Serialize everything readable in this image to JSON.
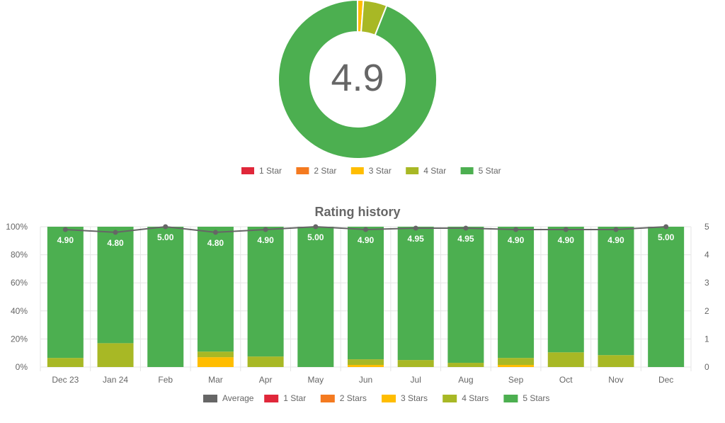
{
  "donut": {
    "center_label": "4.9",
    "legend": [
      {
        "label": "1 Star",
        "color": "#e0273a"
      },
      {
        "label": "2 Star",
        "color": "#f47a20"
      },
      {
        "label": "3 Star",
        "color": "#ffbd00"
      },
      {
        "label": "4 Star",
        "color": "#a8b825"
      },
      {
        "label": "5 Star",
        "color": "#4caf50"
      }
    ]
  },
  "history": {
    "title": "Rating history",
    "legend": [
      {
        "label": "Average",
        "color": "#666666"
      },
      {
        "label": "1 Star",
        "color": "#e0273a"
      },
      {
        "label": "2 Stars",
        "color": "#f47a20"
      },
      {
        "label": "3 Stars",
        "color": "#ffbd00"
      },
      {
        "label": "4 Stars",
        "color": "#a8b825"
      },
      {
        "label": "5 Stars",
        "color": "#4caf50"
      }
    ]
  },
  "chart_data": [
    {
      "type": "pie",
      "subtype": "donut",
      "categories": [
        "1 Star",
        "2 Star",
        "3 Star",
        "4 Star",
        "5 Star"
      ],
      "values": [
        0,
        0,
        1.2,
        4.8,
        94.0
      ],
      "center_value": "4.9",
      "legend_position": "bottom"
    },
    {
      "type": "bar",
      "stacked": true,
      "title": "Rating history",
      "categories": [
        "Dec 23",
        "Jan 24",
        "Feb",
        "Mar",
        "Apr",
        "May",
        "Jun",
        "Jul",
        "Aug",
        "Sep",
        "Oct",
        "Nov",
        "Dec"
      ],
      "series": [
        {
          "name": "1 Star",
          "values": [
            0,
            0,
            0,
            0,
            0,
            0,
            0,
            0,
            0,
            0,
            0,
            0,
            0
          ]
        },
        {
          "name": "2 Stars",
          "values": [
            0,
            0,
            0,
            0,
            0,
            0,
            0,
            0,
            0,
            0,
            0,
            0,
            0
          ]
        },
        {
          "name": "3 Stars",
          "values": [
            0,
            0,
            0,
            7,
            0,
            0,
            1.5,
            0,
            0,
            1.5,
            0,
            0,
            0
          ]
        },
        {
          "name": "4 Stars",
          "values": [
            6.5,
            17,
            0,
            4,
            7.5,
            0,
            4,
            5,
            3,
            5,
            10.5,
            8.5,
            0
          ]
        },
        {
          "name": "5 Stars",
          "values": [
            93.5,
            83,
            100,
            89,
            92.5,
            100,
            94.5,
            95,
            97,
            93.5,
            89.5,
            91.5,
            100
          ]
        }
      ],
      "average": {
        "name": "Average",
        "values": [
          4.9,
          4.8,
          5.0,
          4.8,
          4.9,
          5.0,
          4.9,
          4.95,
          4.95,
          4.9,
          4.9,
          4.9,
          5.0
        ]
      },
      "data_labels": [
        "4.90",
        "4.80",
        "5.00",
        "4.80",
        "4.90",
        "5.00",
        "4.90",
        "4.95",
        "4.95",
        "4.90",
        "4.90",
        "4.90",
        "5.00"
      ],
      "y_left": {
        "ticks": [
          "0%",
          "20%",
          "40%",
          "60%",
          "80%",
          "100%"
        ],
        "range": [
          0,
          100
        ]
      },
      "y_right": {
        "ticks": [
          "0",
          "1",
          "2",
          "3",
          "4",
          "5"
        ],
        "range": [
          0,
          5
        ]
      },
      "grid": true,
      "legend_position": "bottom"
    }
  ]
}
